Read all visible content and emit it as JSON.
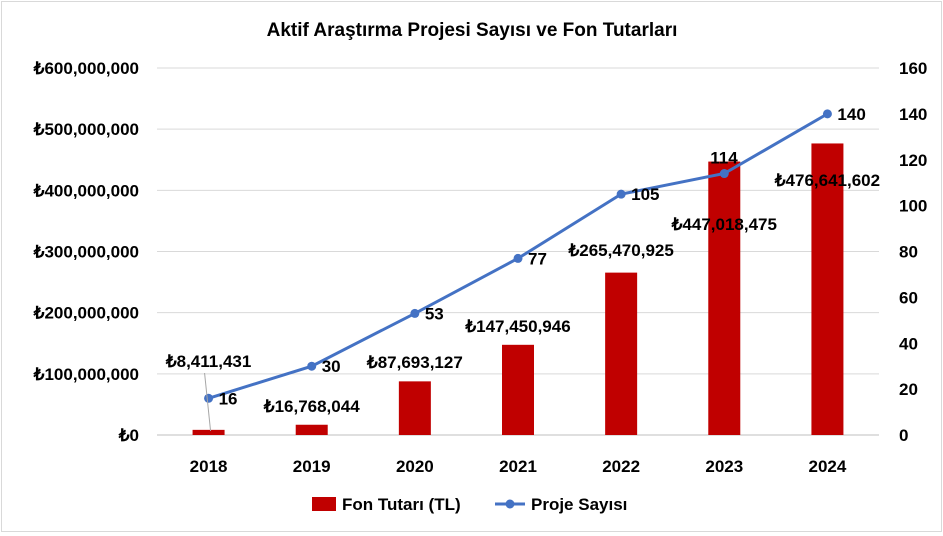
{
  "chart_data": {
    "type": "bar+line",
    "title": "Aktif Araştırma Projesi Sayısı ve Fon Tutarları",
    "categories": [
      "2018",
      "2019",
      "2020",
      "2021",
      "2022",
      "2023",
      "2024"
    ],
    "series": [
      {
        "name": "Fon Tutarı (TL)",
        "type": "bar",
        "axis": "left",
        "values": [
          8411431,
          16768044,
          87693127,
          147450946,
          265470925,
          447018475,
          476641602
        ],
        "labels": [
          "₺8,411,431",
          "₺16,768,044",
          "₺87,693,127",
          "₺147,450,946",
          "₺265,470,925",
          "₺447,018,475",
          "₺476,641,602"
        ],
        "color": "#c00000"
      },
      {
        "name": "Proje Sayısı",
        "type": "line",
        "axis": "right",
        "values": [
          16,
          30,
          53,
          77,
          105,
          114,
          140
        ],
        "labels": [
          "16",
          "30",
          "53",
          "77",
          "105",
          "114",
          "140"
        ],
        "color": "#4472c4"
      }
    ],
    "y_left": {
      "ylim": [
        0,
        600000000
      ],
      "ticks": [
        "₺0",
        "₺100,000,000",
        "₺200,000,000",
        "₺300,000,000",
        "₺400,000,000",
        "₺500,000,000",
        "₺600,000,000"
      ]
    },
    "y_right": {
      "ylim": [
        0,
        160
      ],
      "ticks": [
        "0",
        "20",
        "40",
        "60",
        "80",
        "100",
        "120",
        "140",
        "160"
      ]
    },
    "grid": true,
    "legend": "bottom"
  }
}
